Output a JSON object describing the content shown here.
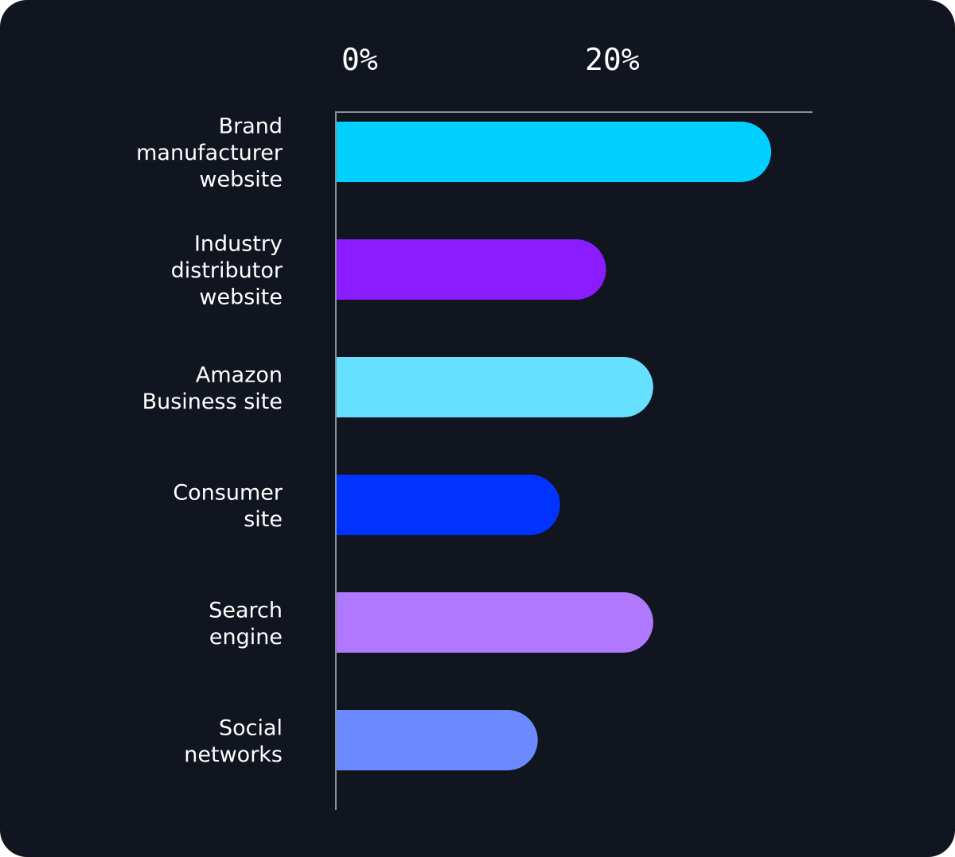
{
  "chart_data": {
    "type": "bar",
    "orientation": "horizontal",
    "title": "",
    "xlabel": "",
    "ylabel": "",
    "xlim": [
      0,
      37
    ],
    "x_ticks": [
      {
        "value": 0,
        "label": "0%"
      },
      {
        "value": 20,
        "label": "20%"
      }
    ],
    "tick_position": "top",
    "grid": false,
    "legend": "none",
    "categories": [
      "Brand manufacturer website",
      "Industry distributor website",
      "Amazon Business site",
      "Consumer site",
      "Search engine",
      "Social networks"
    ],
    "category_lines": [
      [
        "Brand",
        "manufacturer",
        "website"
      ],
      [
        "Industry",
        "distributor",
        "website"
      ],
      [
        "Amazon",
        "Business site"
      ],
      [
        "Consumer",
        "site"
      ],
      [
        "Search",
        "engine"
      ],
      [
        "Social",
        "networks"
      ]
    ],
    "values": [
      35,
      21.7,
      25.5,
      18,
      25.5,
      16.2
    ],
    "colors": [
      "#00cfff",
      "#8a1cff",
      "#66e0ff",
      "#0033ff",
      "#b078ff",
      "#6b8aff"
    ],
    "background": "#10151f",
    "axis_color": "#8a8f99"
  }
}
